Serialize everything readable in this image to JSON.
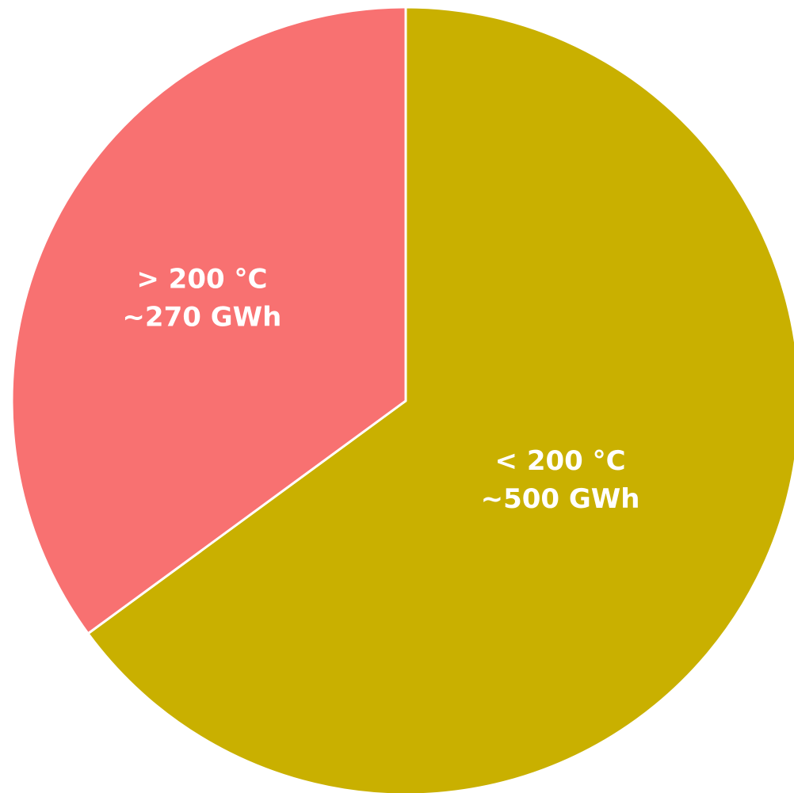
{
  "chart_data": {
    "type": "pie",
    "title": "",
    "slices": [
      {
        "temperature_label": "< 200 °C",
        "energy_label": "~500 GWh",
        "value": 500,
        "color": "#c9b000"
      },
      {
        "temperature_label": "> 200 °C",
        "energy_label": "~270 GWh",
        "value": 270,
        "color": "#f87171"
      }
    ],
    "start": "12 o'clock",
    "direction": "clockwise",
    "legend": "none",
    "labels": "inside slices, white bold text"
  }
}
